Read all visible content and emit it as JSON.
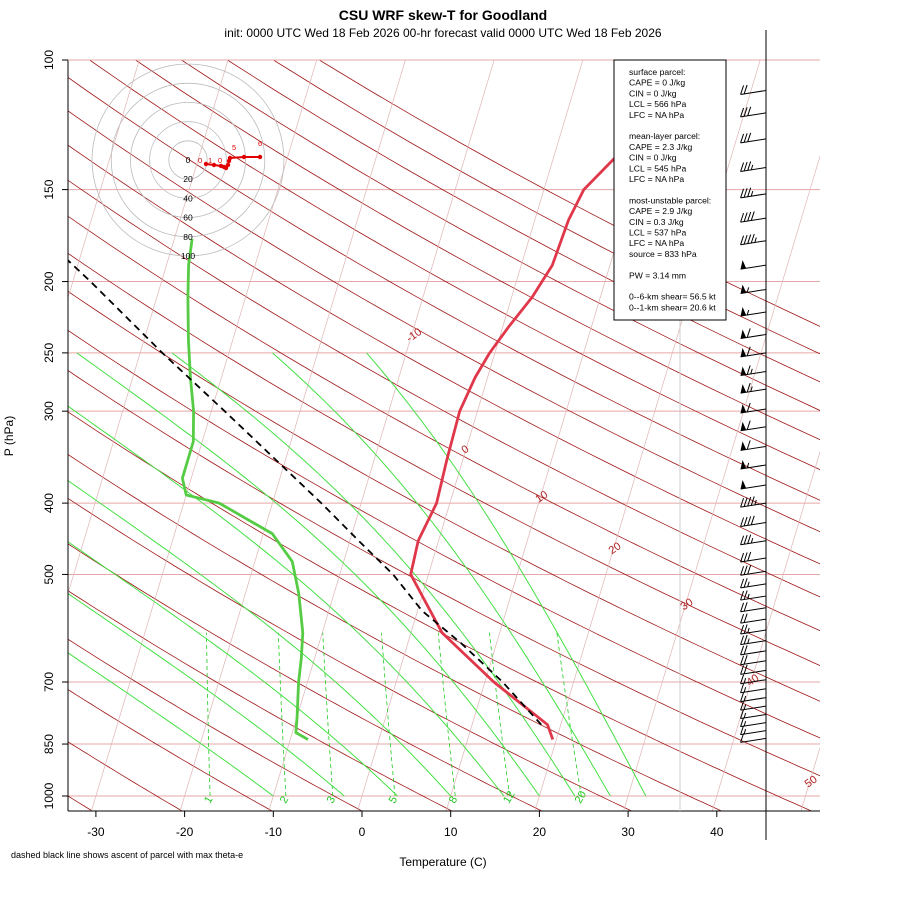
{
  "header": {
    "title": "CSU WRF skew-T for Goodland",
    "subtitle": "init: 0000 UTC Wed 18 Feb 2026     00-hr forecast valid 0000 UTC Wed 18 Feb 2026"
  },
  "axes": {
    "xlabel": "Temperature (C)",
    "ylabel": "P (hPa)",
    "x_ticks": [
      "-30",
      "-20",
      "-10",
      "0",
      "10",
      "20",
      "30",
      "40"
    ],
    "y_ticks": [
      "100",
      "150",
      "200",
      "250",
      "300",
      "400",
      "500",
      "700",
      "850",
      "1000"
    ]
  },
  "footnote": "dashed black line shows ascent of parcel with max theta-e",
  "info_box": {
    "lines": [
      "surface parcel:",
      "CAPE = 0 J/kg",
      "CIN = 0 J/kg",
      "LCL = 566 hPa",
      "LFC = NA hPa",
      "",
      "mean-layer parcel:",
      "CAPE = 2.3 J/kg",
      "CIN = 0 J/kg",
      "LCL = 545 hPa",
      "LFC = NA hPa",
      "",
      "most-unstable parcel:",
      "CAPE = 2.9 J/kg",
      "CIN = 0.3 J/kg",
      "LCL = 537 hPa",
      "LFC = NA hPa",
      "source = 833 hPa",
      "",
      "PW =  3.14 mm",
      "",
      "0--6-km shear= 56.5 kt",
      "0--1-km shear= 20.6 kt"
    ]
  },
  "colors": {
    "temperature": "#e0384b",
    "dewpoint": "#55cc44",
    "parcel": "#000000",
    "isotherm": "#b22222",
    "isobar": "#e6a8a8",
    "mixing_ratio": "#22c922",
    "dry_adiabat": "#a01818",
    "moist_adiabat": "#44e044",
    "hodograph": "#e00000"
  },
  "chart_data": {
    "type": "skew-t",
    "title": "CSU WRF skew-T for Goodland",
    "xlabel": "Temperature (C)",
    "ylabel": "P (hPa)",
    "xlim": [
      -33,
      44
    ],
    "ylim": [
      1000,
      100
    ],
    "y_scale": "log",
    "isotherm_labels": [
      "-10",
      "0",
      "10",
      "20",
      "30",
      "40",
      "50"
    ],
    "mixing_ratio_labels": [
      "1",
      "2",
      "3",
      "5",
      "8",
      "12",
      "20"
    ],
    "series": [
      {
        "name": "temperature",
        "points": [
          [
            838,
            19.6
          ],
          [
            800,
            18.5
          ],
          [
            700,
            11
          ],
          [
            600,
            3.5
          ],
          [
            500,
            -2
          ],
          [
            450,
            -2.3
          ],
          [
            400,
            -1.5
          ],
          [
            350,
            -1.8
          ],
          [
            300,
            -2
          ],
          [
            270,
            -1.4
          ],
          [
            250,
            -0.6
          ],
          [
            230,
            0.7
          ],
          [
            210,
            2.3
          ],
          [
            190,
            3.5
          ],
          [
            165,
            3.8
          ],
          [
            150,
            4.5
          ],
          [
            130,
            8
          ],
          [
            110,
            14
          ],
          [
            104,
            16
          ]
        ]
      },
      {
        "name": "dewpoint",
        "points": [
          [
            838,
            -8
          ],
          [
            820,
            -9.6
          ],
          [
            780,
            -10
          ],
          [
            700,
            -11
          ],
          [
            650,
            -11.5
          ],
          [
            600,
            -12.2
          ],
          [
            530,
            -14
          ],
          [
            480,
            -15.8
          ],
          [
            440,
            -19
          ],
          [
            400,
            -26
          ],
          [
            390,
            -30
          ],
          [
            370,
            -31
          ],
          [
            330,
            -31
          ],
          [
            300,
            -32
          ],
          [
            270,
            -33.5
          ],
          [
            240,
            -35
          ],
          [
            210,
            -36.5
          ],
          [
            190,
            -37.5
          ],
          [
            175,
            -38
          ]
        ]
      },
      {
        "name": "parcel ascent (max theta-e)",
        "points": [
          [
            800,
            17.8
          ],
          [
            700,
            12
          ],
          [
            620,
            6
          ],
          [
            560,
            0.5
          ],
          [
            500,
            -4
          ],
          [
            450,
            -9
          ],
          [
            400,
            -14.5
          ],
          [
            350,
            -21
          ],
          [
            300,
            -28.5
          ],
          [
            250,
            -37.5
          ],
          [
            200,
            -48
          ],
          [
            170,
            -56
          ],
          [
            150,
            -63
          ],
          [
            130,
            -70
          ]
        ]
      }
    ],
    "wind_barbs": {
      "pressure_levels": [
        110,
        118,
        128,
        140,
        152,
        164,
        176,
        190,
        205,
        220,
        236,
        250,
        265,
        280,
        298,
        315,
        335,
        355,
        378,
        400,
        425,
        450,
        475,
        495,
        515,
        535,
        555,
        575,
        595,
        615,
        635,
        655,
        675,
        695,
        715,
        735,
        755,
        775,
        795,
        815,
        835
      ],
      "speed_kt": [
        20,
        30,
        30,
        35,
        35,
        40,
        45,
        50,
        55,
        55,
        60,
        60,
        65,
        65,
        60,
        60,
        60,
        55,
        50,
        45,
        40,
        35,
        30,
        30,
        25,
        25,
        20,
        20,
        25,
        25,
        20,
        20,
        20,
        15,
        15,
        15,
        15,
        15,
        15,
        15,
        10
      ]
    },
    "hodograph": {
      "ring_labels": [
        "0",
        "20",
        "40",
        "60",
        "80",
        "100"
      ],
      "point_labels": [
        "0",
        "1",
        "0",
        "5",
        "6"
      ]
    }
  }
}
